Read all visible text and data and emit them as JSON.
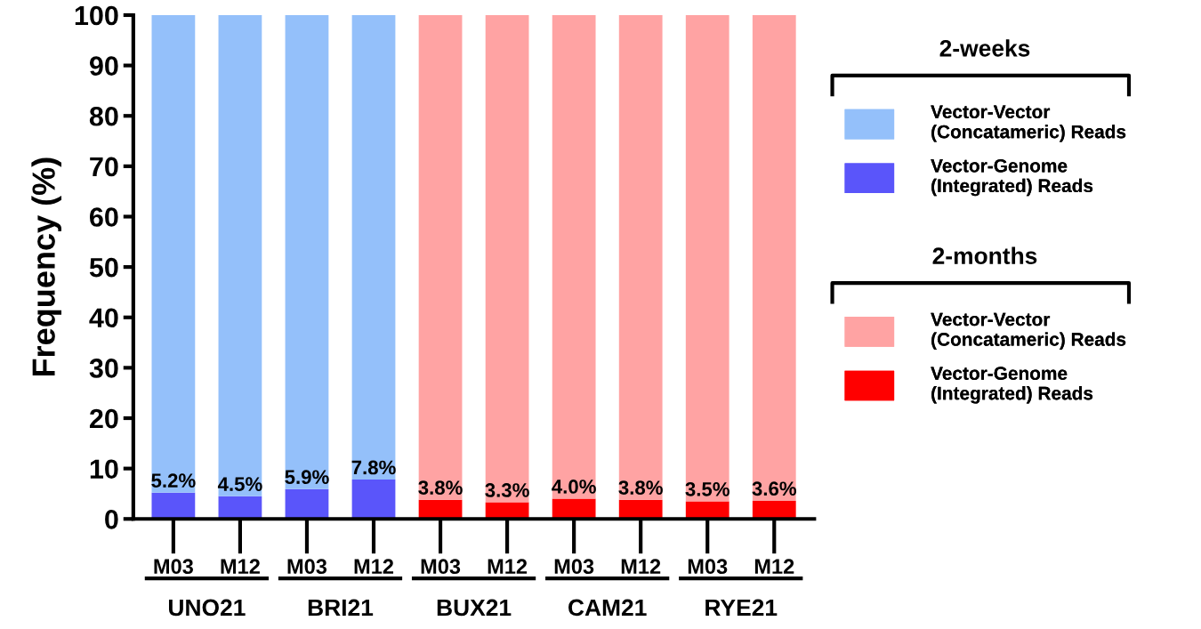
{
  "chart_data": {
    "type": "bar",
    "stacked": true,
    "ylabel": "Frequency (%)",
    "categories": [
      "M03",
      "M12",
      "M03",
      "M12",
      "M03",
      "M12",
      "M03",
      "M12",
      "M03",
      "M12"
    ],
    "series": [
      {
        "name": "Vector-Genome\n(Integrated) Reads",
        "color": "#5a55fa",
        "values": [
          5.2,
          4.5,
          5.9,
          7.8,
          null,
          null,
          null,
          null,
          null,
          null
        ],
        "value_labels": [
          "5.2%",
          "4.5%",
          "5.9%",
          "7.8%",
          null,
          null,
          null,
          null,
          null,
          null
        ]
      },
      {
        "name": "Vector-Vector\n(Concatameric) Reads",
        "color": "#94c0fa",
        "values": [
          94.8,
          95.5,
          94.1,
          92.2,
          null,
          null,
          null,
          null,
          null,
          null
        ]
      },
      {
        "name": "Vector-Genome\n(Integrated) Reads",
        "color": "#ff0000",
        "values": [
          null,
          null,
          null,
          null,
          3.8,
          3.3,
          4.0,
          3.8,
          3.5,
          3.6
        ],
        "value_labels": [
          null,
          null,
          null,
          null,
          "3.8%",
          "3.3%",
          "4.0%",
          "3.8%",
          "3.5%",
          "3.6%"
        ]
      },
      {
        "name": "Vector-Vector\n(Concatameric) Reads",
        "color": "#ffa3a3",
        "values": [
          null,
          null,
          null,
          null,
          96.2,
          96.7,
          96.0,
          96.2,
          96.5,
          96.4
        ]
      }
    ],
    "legend_title": [
      "2-weeks",
      "2-months"
    ],
    "annotations": [
      "UNO21",
      "BRI21",
      "BUX21",
      "CAM21",
      "RYE21"
    ],
    "ylim": [
      0,
      100
    ],
    "yticks": [
      0,
      10,
      20,
      30,
      40,
      50,
      60,
      70,
      80,
      90,
      100
    ],
    "grid": false,
    "legend": "right"
  }
}
